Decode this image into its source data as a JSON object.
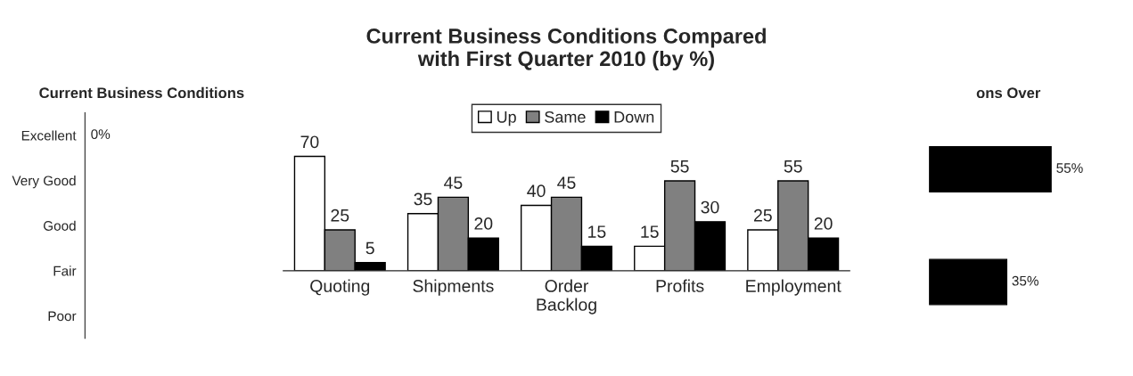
{
  "chart_data": [
    {
      "type": "other",
      "title": "Current Business Conditions",
      "categories": [
        "Excellent",
        "Very Good",
        "Good",
        "Fair",
        "Poor"
      ],
      "annotations": [
        "0%"
      ]
    },
    {
      "type": "bar",
      "title": "Current Business Conditions Compared\nwith First Quarter 2010 (by %)",
      "categories": [
        "Quoting",
        "Shipments",
        "Order\nBacklog",
        "Profits",
        "Employment"
      ],
      "series": [
        {
          "name": "Up",
          "color": "#ffffff",
          "values": [
            70,
            35,
            40,
            15,
            25
          ]
        },
        {
          "name": "Same",
          "color": "#808080",
          "values": [
            25,
            45,
            45,
            55,
            55
          ]
        },
        {
          "name": "Down",
          "color": "#000000",
          "values": [
            5,
            20,
            15,
            30,
            20
          ]
        }
      ],
      "data_labels": true,
      "legend": "top",
      "tick_labels": "x"
    },
    {
      "type": "bar",
      "title": "ons Over",
      "orientation": "horizontal",
      "categories": [
        null,
        null
      ],
      "values": [
        55,
        35
      ],
      "value_labels": [
        "55%",
        "35%"
      ],
      "color": "#000000",
      "tick_labels": false
    }
  ]
}
